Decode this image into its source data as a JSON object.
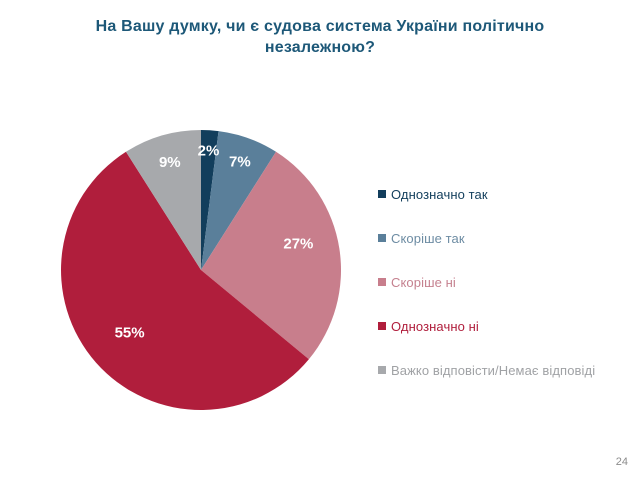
{
  "slide": {
    "title": "На Вашу думку, чи є судова система України політично незалежною?",
    "title_color": "#1d5878",
    "background": "#ffffff",
    "page_number": "24",
    "page_number_color": "#8c8c8c"
  },
  "chart_data": {
    "type": "pie",
    "title": "На Вашу думку, чи є судова система України політично незалежною?",
    "categories": [
      "Однозначно так",
      "Скоріше так",
      "Скоріше ні",
      "Однозначно ні",
      "Важко відповісти/Немає відповіді"
    ],
    "values": [
      2,
      7,
      27,
      55,
      9
    ],
    "labels": [
      "2%",
      "7%",
      "27%",
      "55%",
      "9%"
    ],
    "unit": "%",
    "colors": [
      "#123e5c",
      "#5a7f9a",
      "#c87e8c",
      "#b01e3c",
      "#a7a9ac"
    ],
    "legend_text_colors": [
      "#123e5c",
      "#6d8ca3",
      "#c5818f",
      "#b01e3c",
      "#a0a2a5"
    ],
    "slice_label_color": "#ffffff",
    "start_angle_deg": 0,
    "direction": "clockwise",
    "legend_position": "right",
    "grid": false
  }
}
